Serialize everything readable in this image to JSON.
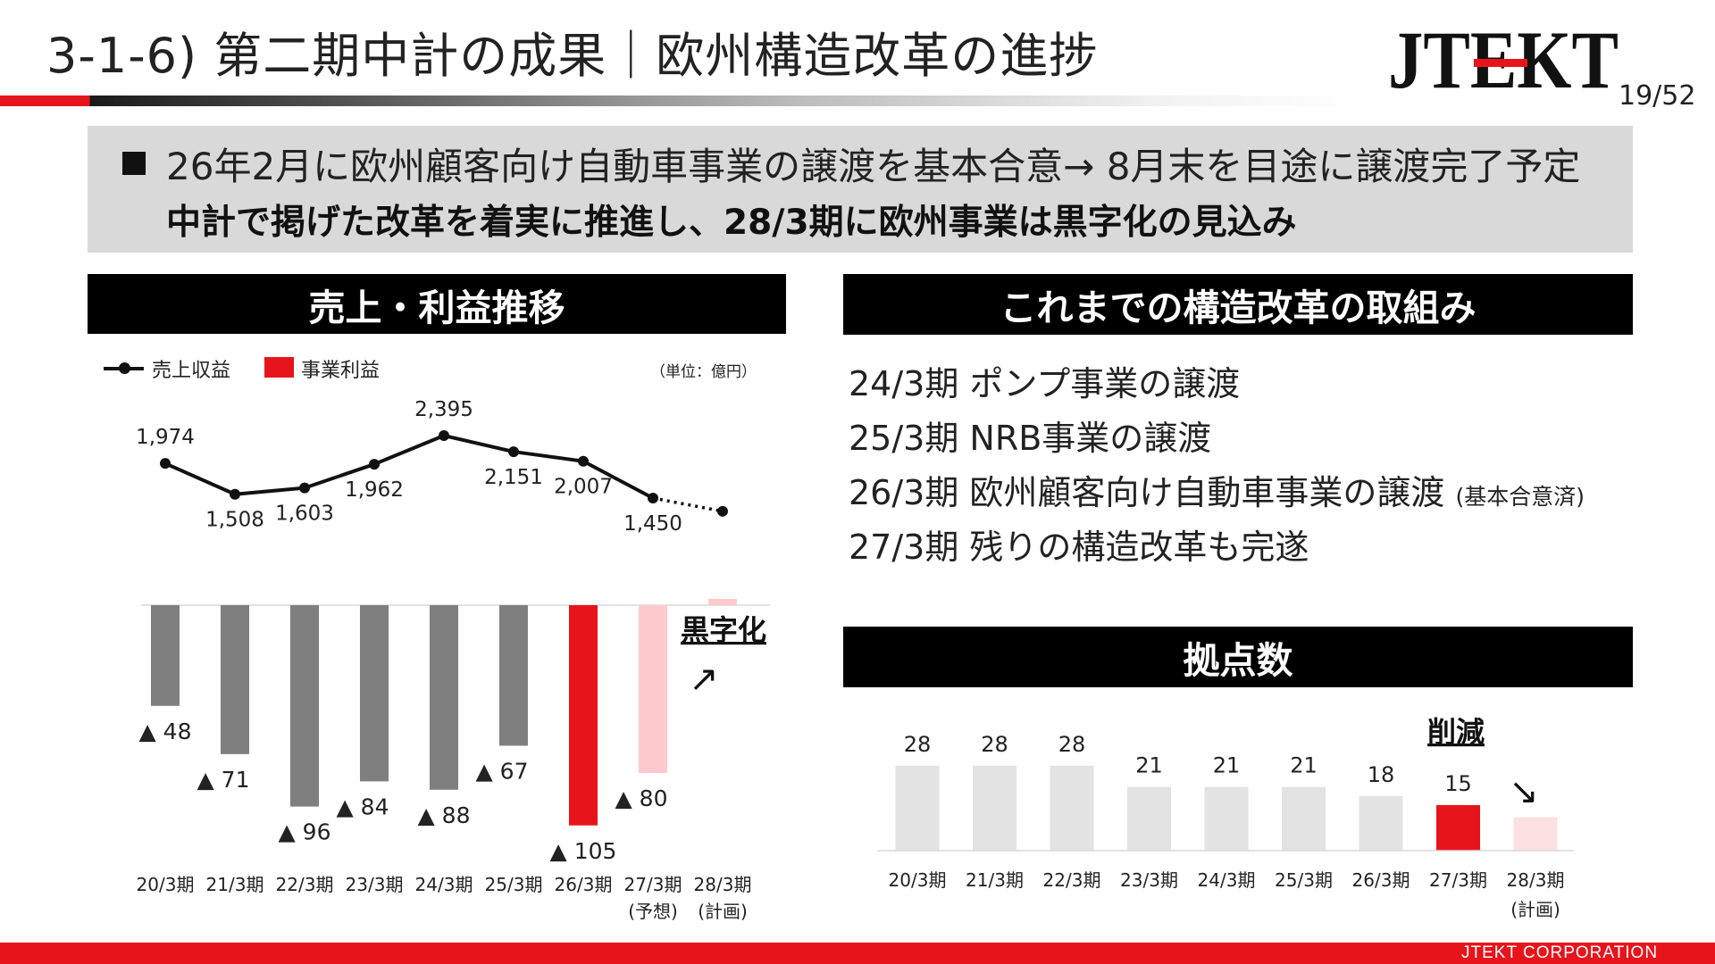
{
  "header": {
    "title": "3-1-6) 第二期中計の成果｜欧州構造改革の進捗",
    "page_number": "19/52",
    "logo_text": "JTEKT",
    "colors": {
      "accent": "#e8141c",
      "dark": "#000000",
      "summary_bg": "#d9d9d9"
    }
  },
  "summary": {
    "line1": "26年2月に欧州顧客向け自動車事業の譲渡を基本合意→ 8月末を目途に譲渡完了予定",
    "line2": "中計で掲げた改革を着実に推進し、28/3期に欧州事業は黒字化の見込み"
  },
  "sales_section": {
    "header": "売上・利益推移",
    "legend_revenue": "売上収益",
    "legend_profit": "事業利益",
    "unit_note": "（単位：億円）",
    "annotation": "黒字化",
    "annotation_arrow": "↗"
  },
  "reform_section": {
    "header": "これまでの構造改革の取組み",
    "items": [
      {
        "text": "24/3期 ポンプ事業の譲渡",
        "note": ""
      },
      {
        "text": "25/3期 NRB事業の譲渡",
        "note": ""
      },
      {
        "text": "26/3期 欧州顧客向け自動車事業の譲渡",
        "note": "(基本合意済)"
      },
      {
        "text": "27/3期 残りの構造改革も完遂",
        "note": ""
      }
    ]
  },
  "sites_section": {
    "header": "拠点数",
    "annotation": "削減",
    "annotation_arrow": "↘"
  },
  "footer": {
    "text": "JTEKT  CORPORATION"
  },
  "chart_data": [
    {
      "type": "line",
      "title": "売上・利益推移",
      "series_name": "売上収益",
      "unit": "億円",
      "categories": [
        "20/3期",
        "21/3期",
        "22/3期",
        "23/3期",
        "24/3期",
        "25/3期",
        "26/3期",
        "27/3期",
        "28/3期"
      ],
      "category_notes": [
        "",
        "",
        "",
        "",
        "",
        "",
        "",
        "(予想)",
        "(計画)"
      ],
      "values": [
        1974,
        1508,
        1603,
        1962,
        2395,
        2151,
        2007,
        1450,
        null
      ],
      "labels": [
        "1,974",
        "1,508",
        "1,603",
        "1,962",
        "2,395",
        "2,151",
        "2,007",
        "1,450",
        ""
      ],
      "extrapolated_point": {
        "category": "28/3期",
        "value": 1250
      },
      "ylim": [
        1000,
        2600
      ]
    },
    {
      "type": "bar",
      "series_name": "事業利益",
      "unit": "億円",
      "categories": [
        "20/3期",
        "21/3期",
        "22/3期",
        "23/3期",
        "24/3期",
        "25/3期",
        "26/3期",
        "27/3期",
        "28/3期"
      ],
      "values": [
        -48,
        -71,
        -96,
        -84,
        -88,
        -67,
        -105,
        -80,
        3
      ],
      "labels": [
        "▲ 48",
        "▲ 71",
        "▲ 96",
        "▲ 84",
        "▲ 88",
        "▲ 67",
        "▲ 105",
        "▲ 80",
        ""
      ],
      "bar_colors": [
        "#7f7f7f",
        "#7f7f7f",
        "#7f7f7f",
        "#7f7f7f",
        "#7f7f7f",
        "#7f7f7f",
        "#e8141c",
        "#ffcacd",
        "#ffcacd"
      ],
      "ylim": [
        -110,
        5
      ]
    },
    {
      "type": "bar",
      "title": "拠点数",
      "categories": [
        "20/3期",
        "21/3期",
        "22/3期",
        "23/3期",
        "24/3期",
        "25/3期",
        "26/3期",
        "27/3期",
        "28/3期"
      ],
      "category_notes": [
        "",
        "",
        "",
        "",
        "",
        "",
        "",
        "",
        "(計画)"
      ],
      "values": [
        28,
        28,
        28,
        21,
        21,
        21,
        18,
        15,
        11
      ],
      "labels": [
        "28",
        "28",
        "28",
        "21",
        "21",
        "21",
        "18",
        "15",
        ""
      ],
      "bar_colors": [
        "#e3e3e3",
        "#e3e3e3",
        "#e3e3e3",
        "#e3e3e3",
        "#e3e3e3",
        "#e3e3e3",
        "#e3e3e3",
        "#e8141c",
        "#fde0e2"
      ],
      "ylim": [
        0,
        32
      ]
    }
  ]
}
